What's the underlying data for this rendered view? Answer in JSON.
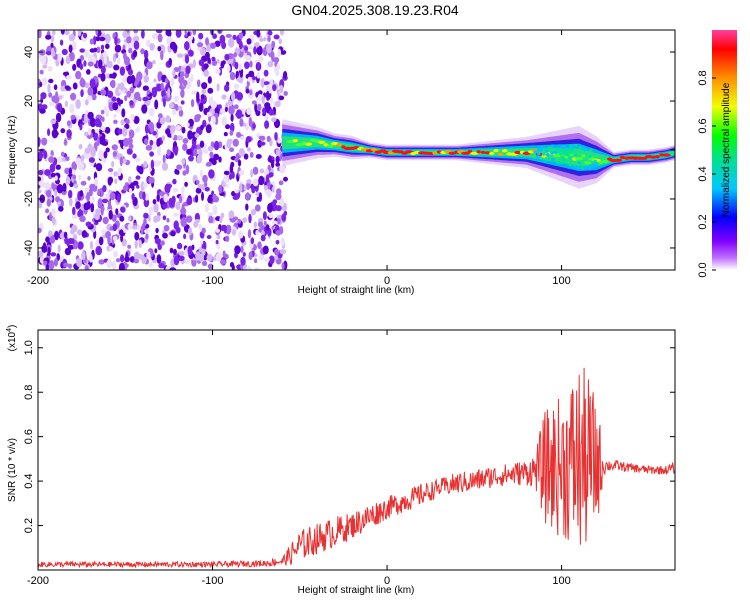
{
  "title": "GN04.2025.308.19.23.R04",
  "colors": {
    "line": "#e83030",
    "ridge": "#ee1c1c",
    "noise": [
      "#5a00d0",
      "#7a22e8",
      "#a868ec",
      "#d4b8f4",
      "#ece0fa"
    ],
    "spectrum": [
      "#ffffff",
      "#c070ff",
      "#8000ff",
      "#0000ff",
      "#00c8ff",
      "#00e090",
      "#00ff00",
      "#f0ff00",
      "#ff9000",
      "#ff0000",
      "#ff40a0"
    ]
  },
  "chart_data": [
    {
      "type": "heatmap",
      "name": "spectrogram",
      "xlabel": "Height of straight line (km)",
      "ylabel": "Frequency (Hz)",
      "xlim": [
        -200,
        165
      ],
      "ylim": [
        -49,
        49
      ],
      "x_ticks": [
        -200,
        -100,
        0,
        100
      ],
      "x_tick_labels": [
        "-200",
        "-100",
        "0",
        "100"
      ],
      "y_ticks": [
        -40,
        -20,
        0,
        20,
        40
      ],
      "y_tick_labels": [
        "-40",
        "-20",
        "0",
        "20",
        "40"
      ],
      "noise_region": [
        -200,
        -58
      ],
      "ridge": {
        "x": [
          -60,
          -50,
          -40,
          -30,
          -20,
          -10,
          0,
          20,
          40,
          60,
          80,
          95,
          110,
          120,
          130,
          140,
          150,
          160,
          165
        ],
        "freq": [
          3,
          3,
          3,
          2,
          1,
          0,
          -1,
          -1,
          -1,
          -1,
          -1,
          -2,
          -3,
          -4,
          -4,
          -3,
          -3,
          -2,
          -1
        ],
        "halfwidth": [
          6,
          5,
          4,
          3,
          3,
          2,
          2,
          2,
          2,
          3,
          4,
          6,
          8,
          6,
          2,
          2,
          2,
          2,
          2
        ]
      },
      "colorbar": {
        "label": "Normalized spectral amplitude",
        "range": [
          0.0,
          1.0
        ],
        "ticks": [
          0.0,
          0.2,
          0.4,
          0.6,
          0.8
        ],
        "tick_labels": [
          "0.0",
          "0.2",
          "0.4",
          "0.6",
          "0.8"
        ]
      }
    },
    {
      "type": "line",
      "name": "snr",
      "xlabel": "Height of straight line (km)",
      "ylabel": "SNR (10 * v/v)",
      "y_multiplier": "(x10",
      "y_multiplier_exp": "4",
      "y_multiplier_close": ")",
      "xlim": [
        -200,
        165
      ],
      "ylim": [
        0.0,
        1.08
      ],
      "x_ticks": [
        -200,
        -100,
        0,
        100
      ],
      "x_tick_labels": [
        "-200",
        "-100",
        "0",
        "100"
      ],
      "y_ticks": [
        0.2,
        0.4,
        0.6,
        0.8,
        1.0
      ],
      "y_tick_labels": [
        "0.2",
        "0.4",
        "0.6",
        "0.8",
        "1.0"
      ],
      "series": [
        {
          "name": "SNR",
          "x": [
            -200,
            -150,
            -100,
            -70,
            -60,
            -55,
            -50,
            -40,
            -30,
            -20,
            -10,
            0,
            10,
            20,
            30,
            40,
            50,
            60,
            70,
            80,
            85,
            90,
            95,
            100,
            105,
            110,
            115,
            120,
            125,
            130,
            140,
            150,
            160,
            165
          ],
          "values": [
            0.025,
            0.025,
            0.025,
            0.03,
            0.04,
            0.07,
            0.11,
            0.14,
            0.17,
            0.2,
            0.24,
            0.28,
            0.31,
            0.34,
            0.37,
            0.39,
            0.4,
            0.42,
            0.43,
            0.44,
            0.45,
            0.46,
            0.46,
            0.47,
            0.48,
            0.49,
            0.49,
            0.48,
            0.47,
            0.47,
            0.46,
            0.45,
            0.45,
            0.46
          ],
          "spread": [
            0.012,
            0.012,
            0.012,
            0.015,
            0.02,
            0.05,
            0.07,
            0.07,
            0.07,
            0.06,
            0.06,
            0.05,
            0.05,
            0.05,
            0.04,
            0.05,
            0.05,
            0.05,
            0.05,
            0.06,
            0.08,
            0.25,
            0.3,
            0.32,
            0.38,
            0.45,
            0.4,
            0.3,
            0.03,
            0.025,
            0.02,
            0.02,
            0.02,
            0.03
          ]
        }
      ]
    }
  ]
}
